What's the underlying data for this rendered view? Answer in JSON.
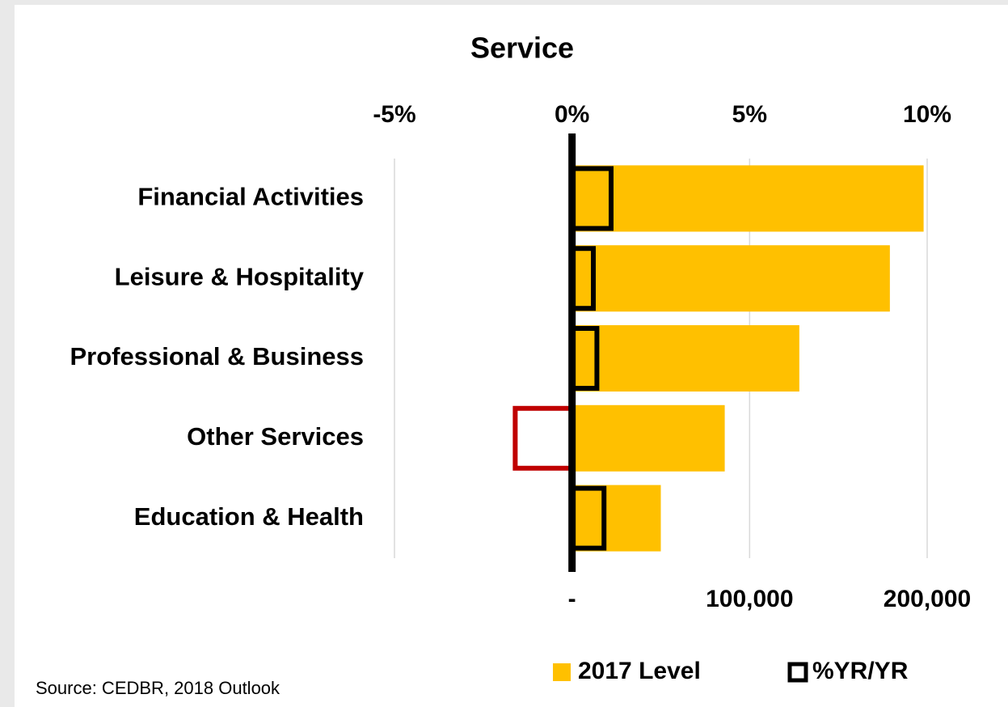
{
  "chart_data": {
    "type": "bar",
    "orientation": "horizontal",
    "title": "Service",
    "categories": [
      "Financial Activities",
      "Leisure & Hospitality",
      "Professional & Business",
      "Other Services",
      "Education & Health"
    ],
    "series": [
      {
        "name": "2017 Level",
        "color": "#ffc000",
        "values": [
          198000,
          179000,
          128000,
          86000,
          50000
        ]
      },
      {
        "name": "%YR/YR",
        "color": "#000000",
        "negative_color": "#c00000",
        "axis": "x2",
        "values": [
          1.1,
          0.6,
          0.7,
          -1.6,
          0.9
        ]
      }
    ],
    "xlim": [
      -100000,
      200000
    ],
    "xticks": [
      {
        "value": 0,
        "label": "-"
      },
      {
        "value": 100000,
        "label": "100,000"
      },
      {
        "value": 200000,
        "label": "200,000"
      }
    ],
    "x2lim": [
      -5,
      10
    ],
    "x2ticks": [
      {
        "value": -5,
        "label": "-5%"
      },
      {
        "value": 0,
        "label": "0%"
      },
      {
        "value": 5,
        "label": "5%"
      },
      {
        "value": 10,
        "label": "10%"
      }
    ],
    "grid": true,
    "legend": "bottom",
    "source": "Source: CEDBR, 2018 Outlook"
  }
}
